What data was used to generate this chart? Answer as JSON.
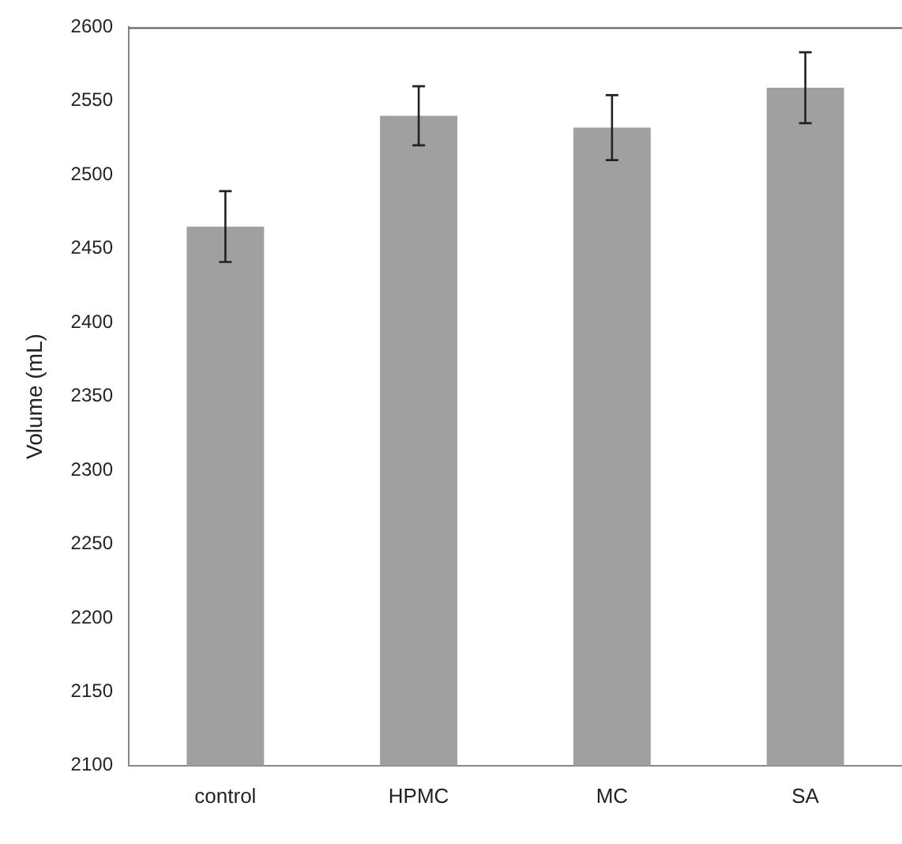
{
  "chart_data": {
    "type": "bar",
    "ylabel": "Volume (mL)",
    "categories": [
      "control",
      "HPMC",
      "MC",
      "SA"
    ],
    "values": [
      2465,
      2540,
      2532,
      2559
    ],
    "color": "#a0a0a0",
    "errors": [
      24,
      20,
      22,
      24
    ],
    "ylim": [
      2100,
      2600
    ],
    "yticks": [
      2100,
      2150,
      2200,
      2250,
      2300,
      2350,
      2400,
      2450,
      2500,
      2550,
      2600
    ],
    "grid": false,
    "legend": false
  }
}
